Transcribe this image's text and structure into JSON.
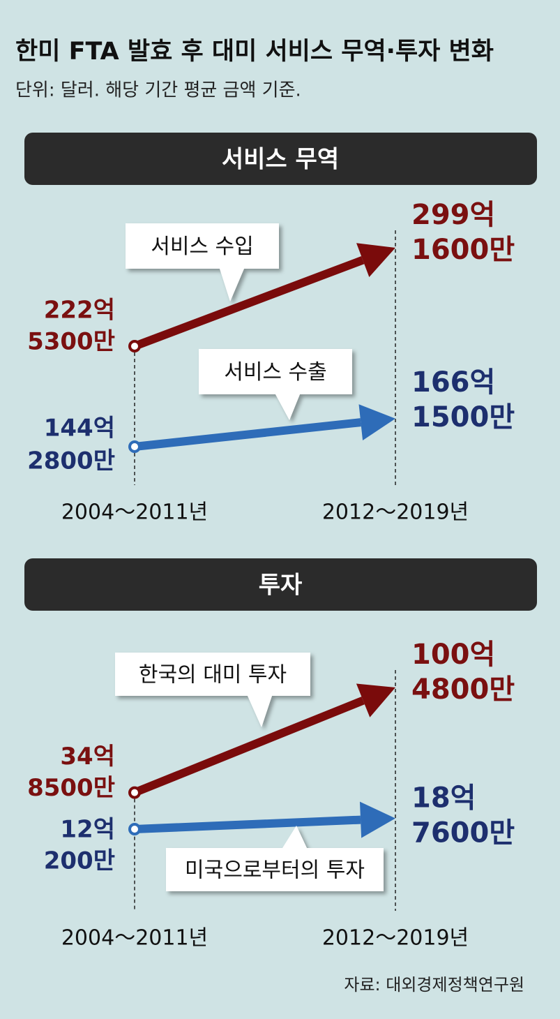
{
  "title": "한미 FTA 발효 후 대미 서비스 무역·투자 변화",
  "subtitle": "단위: 달러. 해당 기간 평균 금액 기준.",
  "source": "자료: 대외경제정책연구원",
  "chart_data": [
    {
      "type": "slope",
      "title": "서비스 무역",
      "categories": [
        "2004～2011년",
        "2012～2019년"
      ],
      "series": [
        {
          "name": "서비스 수입",
          "color": "#7a0b0b",
          "values": [
            22253000000,
            29916000000
          ],
          "value_labels": [
            [
              "222억",
              "5300만"
            ],
            [
              "299억",
              "1600만"
            ]
          ]
        },
        {
          "name": "서비스 수출",
          "color": "#2e6cb8",
          "values": [
            14428000000,
            16615000000
          ],
          "value_labels": [
            [
              "144억",
              "2800만"
            ],
            [
              "166억",
              "1500만"
            ]
          ]
        }
      ]
    },
    {
      "type": "slope",
      "title": "투자",
      "categories": [
        "2004～2011년",
        "2012～2019년"
      ],
      "series": [
        {
          "name": "한국의 대미 투자",
          "color": "#7a0b0b",
          "values": [
            3485000000,
            10048000000
          ],
          "value_labels": [
            [
              "34억",
              "8500만"
            ],
            [
              "100억",
              "4800만"
            ]
          ]
        },
        {
          "name": "미국으로부터의 투자",
          "color": "#2e6cb8",
          "values": [
            1202000000,
            1876000000
          ],
          "value_labels": [
            [
              "12억",
              "200만"
            ],
            [
              "18억",
              "7600만"
            ]
          ]
        }
      ]
    }
  ]
}
